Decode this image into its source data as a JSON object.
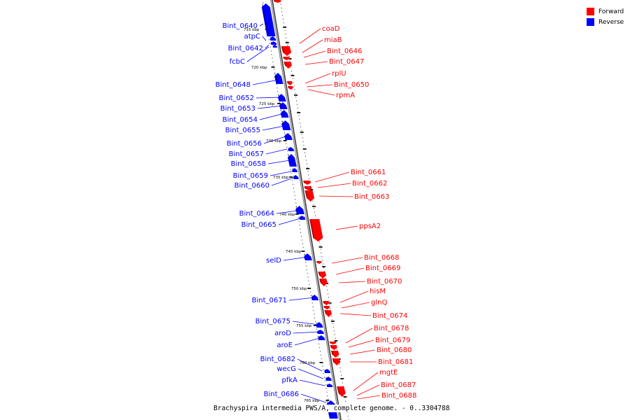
{
  "colors": {
    "forward": "#ff0000",
    "reverse": "#0000ff",
    "backbone": "#8a8a8a"
  },
  "legend": [
    {
      "label": "Forward",
      "color": "#ff0000"
    },
    {
      "label": "Reverse",
      "color": "#0000ff"
    }
  ],
  "caption": "Brachyspira intermedia PWS/A, complete genome. - 0..3304788",
  "kbp_ticks": [
    "715 kbp",
    "720 kbp",
    "725 kbp",
    "730 kbp",
    "735 kbp",
    "740 kbp",
    "745 kbp",
    "750 kbp",
    "755 kbp",
    "760 kbp",
    "765 kbp"
  ],
  "reverse_genes": [
    "Bint_0640",
    "atpC",
    "Bint_0642",
    "fcbC",
    "Bint_0648",
    "Bint_0652",
    "Bint_0653",
    "Bint_0654",
    "Bint_0655",
    "Bint_0656",
    "Bint_0657",
    "Bint_0658",
    "Bint_0659",
    "Bint_0660",
    "Bint_0664",
    "Bint_0665",
    "selD",
    "Bint_0671",
    "Bint_0675",
    "aroD",
    "aroE",
    "Bint_0682",
    "wecG",
    "pfkA",
    "Bint_0686"
  ],
  "forward_genes": [
    "coaD",
    "miaB",
    "Bint_0646",
    "Bint_0647",
    "rplU",
    "Bint_0650",
    "rpmA",
    "Bint_0661",
    "Bint_0662",
    "Bint_0663",
    "ppsA2",
    "Bint_0668",
    "Bint_0669",
    "Bint_0670",
    "hisM",
    "glnQ",
    "Bint_0674",
    "Bint_0678",
    "Bint_0679",
    "Bint_0680",
    "Bint_0681",
    "mgtE",
    "Bint_0687",
    "Bint_0688"
  ]
}
